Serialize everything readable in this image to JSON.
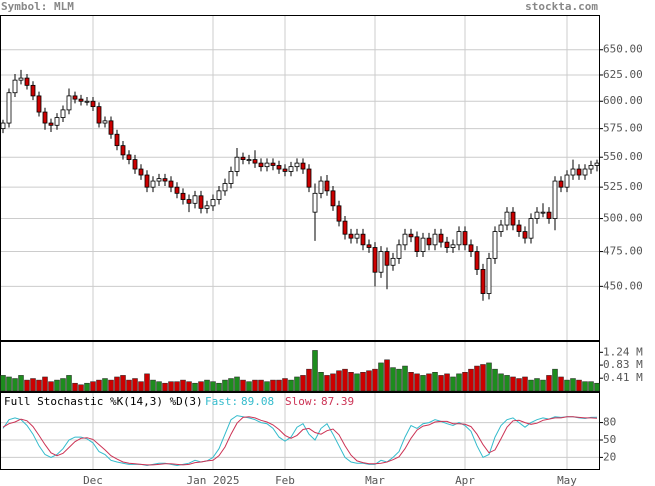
{
  "header": {
    "symbol": "Symbol: MLM",
    "site": "stockta.com"
  },
  "chart_data": [
    {
      "type": "candlestick",
      "categories": [
        null,
        null,
        null,
        null,
        null,
        null,
        null,
        null,
        null,
        null,
        null,
        null,
        null,
        null,
        null,
        "Dec",
        null,
        null,
        null,
        null,
        null,
        null,
        null,
        null,
        null,
        null,
        null,
        null,
        null,
        null,
        null,
        null,
        null,
        null,
        null,
        "Jan 2025",
        null,
        null,
        null,
        null,
        null,
        null,
        null,
        null,
        null,
        null,
        null,
        "Feb",
        null,
        null,
        null,
        null,
        null,
        null,
        null,
        null,
        null,
        null,
        null,
        null,
        null,
        null,
        "Mar",
        null,
        null,
        null,
        null,
        null,
        null,
        null,
        null,
        null,
        null,
        null,
        null,
        null,
        null,
        "Apr",
        null,
        null,
        null,
        null,
        null,
        null,
        null,
        null,
        null,
        null,
        null,
        null,
        null,
        null,
        null,
        null,
        "May",
        null,
        null,
        null,
        null,
        null
      ],
      "open": [
        575,
        580,
        608,
        620,
        622,
        615,
        605,
        590,
        580,
        578,
        585,
        592,
        605,
        602,
        600,
        600,
        595,
        580,
        582,
        570,
        560,
        552,
        548,
        540,
        535,
        525,
        530,
        532,
        530,
        525,
        520,
        515,
        512,
        518,
        508,
        510,
        515,
        522,
        528,
        538,
        550,
        548,
        548,
        545,
        542,
        545,
        543,
        540,
        538,
        542,
        545,
        540,
        505,
        520,
        530,
        522,
        510,
        498,
        488,
        485,
        488,
        480,
        478,
        460,
        475,
        465,
        470,
        480,
        488,
        486,
        475,
        485,
        480,
        488,
        482,
        478,
        480,
        490,
        480,
        475,
        462,
        445,
        470,
        490,
        495,
        505,
        495,
        490,
        485,
        500,
        505,
        505,
        500,
        530,
        525,
        535,
        540,
        535,
        540,
        543
      ],
      "high": [
        583,
        612,
        626,
        630,
        626,
        619,
        609,
        594,
        584,
        589,
        596,
        612,
        609,
        606,
        604,
        604,
        599,
        586,
        586,
        574,
        564,
        556,
        552,
        544,
        539,
        534,
        536,
        536,
        534,
        529,
        524,
        519,
        522,
        522,
        514,
        519,
        526,
        532,
        542,
        558,
        554,
        552,
        556,
        549,
        549,
        549,
        547,
        544,
        546,
        549,
        549,
        544,
        528,
        534,
        535,
        526,
        514,
        502,
        492,
        492,
        492,
        484,
        482,
        479,
        478,
        474,
        484,
        492,
        492,
        490,
        489,
        489,
        492,
        492,
        486,
        484,
        494,
        494,
        484,
        479,
        466,
        474,
        494,
        499,
        509,
        509,
        499,
        494,
        504,
        509,
        512,
        509,
        534,
        534,
        539,
        548,
        544,
        544,
        547,
        548
      ],
      "low": [
        571,
        576,
        604,
        616,
        611,
        601,
        586,
        574,
        572,
        574,
        581,
        588,
        598,
        596,
        596,
        591,
        576,
        576,
        566,
        556,
        548,
        544,
        536,
        531,
        521,
        521,
        526,
        526,
        521,
        516,
        511,
        505,
        508,
        504,
        504,
        506,
        511,
        518,
        524,
        534,
        544,
        544,
        541,
        538,
        538,
        539,
        536,
        534,
        534,
        538,
        536,
        521,
        483,
        516,
        518,
        506,
        494,
        484,
        481,
        481,
        476,
        474,
        450,
        456,
        448,
        461,
        466,
        476,
        482,
        471,
        471,
        476,
        476,
        478,
        474,
        474,
        476,
        476,
        471,
        458,
        440,
        441,
        466,
        486,
        491,
        491,
        486,
        481,
        481,
        496,
        501,
        496,
        491,
        521,
        521,
        531,
        531,
        531,
        536,
        538
      ],
      "close": [
        580,
        608,
        620,
        622,
        615,
        605,
        590,
        580,
        578,
        585,
        592,
        605,
        602,
        600,
        600,
        595,
        580,
        582,
        570,
        560,
        552,
        548,
        540,
        535,
        525,
        530,
        532,
        530,
        525,
        520,
        515,
        512,
        518,
        508,
        510,
        515,
        522,
        528,
        538,
        550,
        548,
        548,
        545,
        542,
        545,
        543,
        540,
        538,
        542,
        545,
        540,
        525,
        520,
        530,
        522,
        510,
        498,
        488,
        485,
        488,
        480,
        478,
        460,
        475,
        465,
        470,
        480,
        488,
        486,
        475,
        485,
        480,
        488,
        482,
        478,
        480,
        490,
        480,
        475,
        462,
        445,
        470,
        490,
        495,
        505,
        495,
        490,
        485,
        500,
        505,
        505,
        500,
        530,
        525,
        535,
        540,
        535,
        540,
        543,
        545
      ],
      "ylim": [
        414,
        685
      ],
      "log": true,
      "yticks": [
        {
          "value": 450,
          "label": "450.00"
        },
        {
          "value": 475,
          "label": "475.00"
        },
        {
          "value": 500,
          "label": "500.00"
        },
        {
          "value": 525,
          "label": "525.00"
        },
        {
          "value": 550,
          "label": "550.00"
        },
        {
          "value": 575,
          "label": "575.00"
        },
        {
          "value": 600,
          "label": "600.00"
        },
        {
          "value": 625,
          "label": "625.00"
        },
        {
          "value": 650,
          "label": "650.00"
        }
      ],
      "up_color": "#ffffff",
      "down_color": "#cc0000",
      "grid": true
    },
    {
      "type": "bar",
      "values": [
        0.5,
        0.45,
        0.4,
        0.5,
        0.35,
        0.4,
        0.35,
        0.45,
        0.3,
        0.35,
        0.4,
        0.5,
        0.25,
        0.2,
        0.25,
        0.3,
        0.35,
        0.4,
        0.35,
        0.45,
        0.5,
        0.35,
        0.4,
        0.3,
        0.55,
        0.35,
        0.3,
        0.25,
        0.3,
        0.3,
        0.35,
        0.3,
        0.25,
        0.3,
        0.35,
        0.3,
        0.25,
        0.35,
        0.4,
        0.45,
        0.35,
        0.3,
        0.35,
        0.35,
        0.3,
        0.35,
        0.35,
        0.4,
        0.35,
        0.45,
        0.5,
        0.7,
        1.3,
        0.6,
        0.5,
        0.55,
        0.65,
        0.7,
        0.6,
        0.55,
        0.6,
        0.65,
        0.7,
        0.9,
        1.0,
        0.75,
        0.7,
        0.8,
        0.6,
        0.55,
        0.5,
        0.55,
        0.6,
        0.5,
        0.55,
        0.45,
        0.55,
        0.6,
        0.7,
        0.8,
        0.85,
        0.9,
        0.7,
        0.55,
        0.5,
        0.45,
        0.4,
        0.45,
        0.35,
        0.4,
        0.35,
        0.5,
        0.7,
        0.45,
        0.35,
        0.4,
        0.35,
        0.3,
        0.3,
        0.25
      ],
      "ylim": [
        0,
        1.57
      ],
      "yticks": [
        {
          "value": 0.41,
          "label": "0.41 M"
        },
        {
          "value": 0.83,
          "label": "0.83 M"
        },
        {
          "value": 1.24,
          "label": "1.24 M"
        }
      ],
      "up_color": "#1e8c1e",
      "down_color": "#cc0000"
    },
    {
      "type": "line",
      "title": "Full Stochastic %K(14,3) %D(3)",
      "series": [
        {
          "name": "Fast:",
          "color": "#33bbcc",
          "values": [
            70,
            85,
            88,
            85,
            75,
            60,
            40,
            25,
            20,
            25,
            35,
            50,
            55,
            55,
            52,
            45,
            30,
            25,
            15,
            12,
            10,
            8,
            8,
            8,
            6,
            8,
            10,
            10,
            8,
            6,
            8,
            10,
            15,
            12,
            14,
            20,
            35,
            60,
            85,
            92,
            90,
            88,
            85,
            80,
            78,
            70,
            55,
            48,
            55,
            72,
            78,
            60,
            50,
            70,
            78,
            60,
            40,
            20,
            12,
            10,
            10,
            8,
            8,
            15,
            12,
            20,
            30,
            55,
            75,
            70,
            78,
            80,
            85,
            82,
            78,
            75,
            80,
            75,
            65,
            40,
            20,
            25,
            55,
            75,
            85,
            88,
            80,
            72,
            80,
            85,
            88,
            86,
            90,
            89,
            90,
            90,
            88,
            87,
            89,
            89.08
          ]
        },
        {
          "name": "Slow:",
          "color": "#cc3355",
          "values": [
            72,
            78,
            81,
            86,
            83,
            73,
            58,
            42,
            28,
            23,
            27,
            37,
            47,
            53,
            54,
            51,
            42,
            33,
            23,
            17,
            12,
            10,
            9,
            8,
            7,
            7,
            8,
            9,
            9,
            8,
            7,
            8,
            11,
            12,
            14,
            15,
            23,
            38,
            60,
            79,
            89,
            90,
            88,
            84,
            81,
            76,
            68,
            58,
            53,
            58,
            68,
            70,
            63,
            60,
            66,
            69,
            59,
            40,
            24,
            14,
            11,
            9,
            9,
            10,
            12,
            16,
            21,
            35,
            53,
            67,
            74,
            76,
            81,
            82,
            82,
            78,
            78,
            77,
            73,
            60,
            42,
            28,
            33,
            52,
            72,
            83,
            84,
            80,
            77,
            79,
            84,
            86,
            88,
            88,
            90,
            90,
            89,
            88,
            88,
            87.39
          ]
        }
      ],
      "ylim": [
        0,
        131
      ],
      "yticks": [
        20,
        50,
        80
      ],
      "grid": true
    }
  ]
}
